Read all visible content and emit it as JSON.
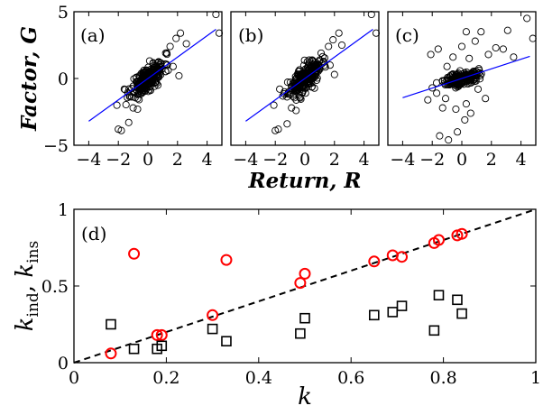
{
  "chart_data": [
    {
      "type": "scatter",
      "panel_label": "(a)",
      "xlabel": "Return, R",
      "ylabel": "Factor, G",
      "xlim": [
        -5,
        5
      ],
      "ylim": [
        -5,
        5
      ],
      "xticks": [
        -4,
        -2,
        0,
        2,
        4
      ],
      "yticks": [
        -5,
        0,
        5
      ],
      "fit_line": {
        "slope": 0.8,
        "intercept": 0.0,
        "color": "#0000ff"
      },
      "cloud": {
        "n": 260,
        "spread_x": 0.55,
        "slope": 0.8,
        "noise": 0.45,
        "seed": 11
      },
      "points": [
        [
          -2.1,
          -2.0
        ],
        [
          -1.8,
          -3.9
        ],
        [
          -2.0,
          -3.8
        ],
        [
          -1.3,
          -3.3
        ],
        [
          -1.0,
          -2.2
        ],
        [
          -0.7,
          -2.3
        ],
        [
          -1.6,
          -0.8
        ],
        [
          1.5,
          2.4
        ],
        [
          1.9,
          3.0
        ],
        [
          2.2,
          3.4
        ],
        [
          2.6,
          2.6
        ],
        [
          1.2,
          1.9
        ],
        [
          4.6,
          4.9
        ],
        [
          4.9,
          3.4
        ],
        [
          2.1,
          0.2
        ],
        [
          1.7,
          0.9
        ]
      ],
      "marker": "circle",
      "marker_color": "#000000"
    },
    {
      "type": "scatter",
      "panel_label": "(b)",
      "xlim": [
        -5,
        5
      ],
      "ylim": [
        -5,
        5
      ],
      "xticks": [
        -4,
        -2,
        0,
        2,
        4
      ],
      "fit_line": {
        "slope": 0.8,
        "intercept": 0.0,
        "color": "#0000ff"
      },
      "cloud": {
        "n": 260,
        "spread_x": 0.55,
        "slope": 0.8,
        "noise": 0.45,
        "seed": 23
      },
      "points": [
        [
          -2.1,
          -2.0
        ],
        [
          -1.8,
          -3.8
        ],
        [
          -2.0,
          -3.9
        ],
        [
          -1.2,
          -3.4
        ],
        [
          -0.9,
          -2.2
        ],
        [
          -0.6,
          -2.4
        ],
        [
          -1.7,
          -0.8
        ],
        [
          1.6,
          2.4
        ],
        [
          1.9,
          2.9
        ],
        [
          2.3,
          3.4
        ],
        [
          2.5,
          2.5
        ],
        [
          1.1,
          1.9
        ],
        [
          4.5,
          4.9
        ],
        [
          4.9,
          3.4
        ],
        [
          2.0,
          0.3
        ],
        [
          1.7,
          1.0
        ]
      ],
      "marker": "circle",
      "marker_color": "#000000"
    },
    {
      "type": "scatter",
      "panel_label": "(c)",
      "xlim": [
        -5,
        5
      ],
      "ylim": [
        -5,
        5
      ],
      "xticks": [
        -4,
        -2,
        0,
        2,
        4
      ],
      "fit_line": {
        "slope": 0.36,
        "intercept": 0.0,
        "color": "#0000ff"
      },
      "cloud": {
        "n": 200,
        "spread_x": 0.55,
        "slope": 0.25,
        "noise": 0.25,
        "seed": 37
      },
      "points": [
        [
          -2.1,
          1.8
        ],
        [
          -1.6,
          2.2
        ],
        [
          -2.0,
          -0.7
        ],
        [
          -1.3,
          -2.2
        ],
        [
          -1.1,
          -1.5
        ],
        [
          -0.9,
          -4.6
        ],
        [
          -1.5,
          -4.3
        ],
        [
          -1.7,
          -1.1
        ],
        [
          -0.4,
          -2.3
        ],
        [
          -0.3,
          -4.0
        ],
        [
          0.3,
          -1.9
        ],
        [
          0.6,
          -2.6
        ],
        [
          0.0,
          2.4
        ],
        [
          0.3,
          3.5
        ],
        [
          0.9,
          2.8
        ],
        [
          1.3,
          3.5
        ],
        [
          1.8,
          1.8
        ],
        [
          2.3,
          2.3
        ],
        [
          2.8,
          2.2
        ],
        [
          3.1,
          3.6
        ],
        [
          3.5,
          1.6
        ],
        [
          4.4,
          4.5
        ],
        [
          4.8,
          3.0
        ],
        [
          -0.6,
          1.6
        ],
        [
          0.5,
          1.5
        ],
        [
          1.1,
          -0.8
        ],
        [
          -1.0,
          0.9
        ],
        [
          0.2,
          -3.1
        ],
        [
          1.6,
          -1.5
        ],
        [
          -2.3,
          -1.6
        ]
      ],
      "marker": "circle",
      "marker_color": "#000000"
    },
    {
      "type": "scatter",
      "panel_label": "(d)",
      "xlabel": "k",
      "ylabel_parts": {
        "k": "k",
        "sub1": "ind",
        "sep": ", ",
        "sub2": "ins"
      },
      "xlim": [
        0,
        1
      ],
      "ylim": [
        0,
        1
      ],
      "xticks": [
        0,
        0.2,
        0.4,
        0.6,
        0.8,
        1
      ],
      "yticks": [
        0,
        0.5,
        1
      ],
      "diagonal": {
        "from": [
          0,
          0
        ],
        "to": [
          1,
          1
        ],
        "style": "dashed",
        "color": "#000000"
      },
      "series": [
        {
          "marker": "circle",
          "color": "#ff0000",
          "points": [
            [
              0.08,
              0.06
            ],
            [
              0.13,
              0.71
            ],
            [
              0.18,
              0.18
            ],
            [
              0.19,
              0.18
            ],
            [
              0.3,
              0.31
            ],
            [
              0.33,
              0.67
            ],
            [
              0.49,
              0.52
            ],
            [
              0.5,
              0.58
            ],
            [
              0.65,
              0.66
            ],
            [
              0.69,
              0.7
            ],
            [
              0.71,
              0.69
            ],
            [
              0.78,
              0.78
            ],
            [
              0.79,
              0.8
            ],
            [
              0.83,
              0.83
            ],
            [
              0.84,
              0.84
            ]
          ]
        },
        {
          "marker": "square",
          "color": "#000000",
          "points": [
            [
              0.08,
              0.25
            ],
            [
              0.13,
              0.09
            ],
            [
              0.18,
              0.09
            ],
            [
              0.19,
              0.11
            ],
            [
              0.3,
              0.22
            ],
            [
              0.33,
              0.14
            ],
            [
              0.49,
              0.19
            ],
            [
              0.5,
              0.29
            ],
            [
              0.65,
              0.31
            ],
            [
              0.69,
              0.33
            ],
            [
              0.71,
              0.37
            ],
            [
              0.78,
              0.21
            ],
            [
              0.79,
              0.44
            ],
            [
              0.83,
              0.41
            ],
            [
              0.84,
              0.32
            ]
          ]
        }
      ]
    }
  ]
}
